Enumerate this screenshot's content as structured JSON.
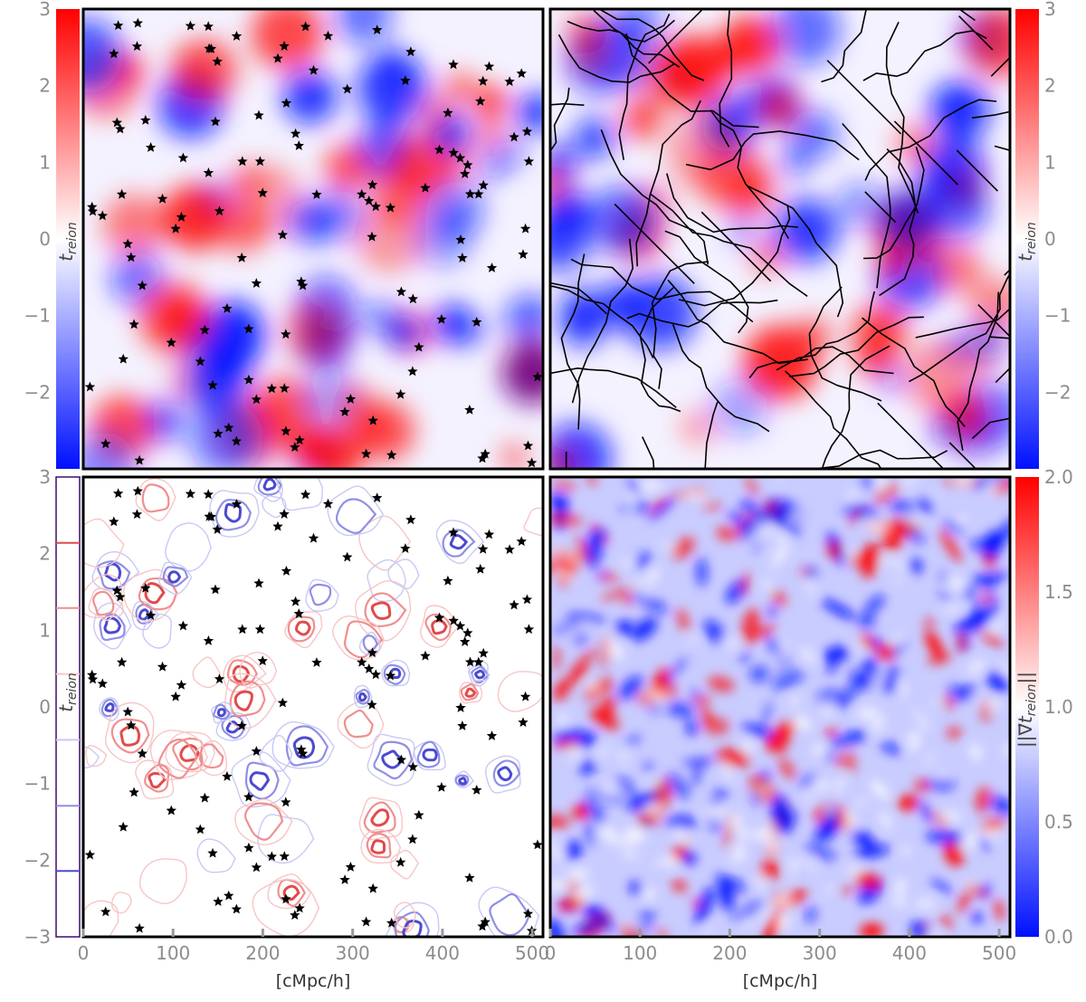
{
  "colors": {
    "cmap_low": "#0010ff",
    "cmap_mid": "#ffffff",
    "cmap_high": "#ff0000",
    "tick_text": "#8c8c8c",
    "frame": "#000000",
    "markers": "#000000"
  },
  "chart_data": [
    {
      "id": "top-left",
      "type": "heatmap",
      "title": "",
      "xlim": [
        0,
        512
      ],
      "ylim": [
        0,
        512
      ],
      "colorbar": {
        "label": "t_reion",
        "side": "left",
        "range": [
          -3,
          3
        ],
        "ticks": [
          3,
          2,
          1,
          0,
          -1,
          -2
        ],
        "tick_labels": [
          "3",
          "2",
          "1",
          "0",
          "−1",
          "−2"
        ]
      },
      "overlay": "star-markers"
    },
    {
      "id": "top-right",
      "type": "heatmap",
      "title": "",
      "xlim": [
        0,
        512
      ],
      "ylim": [
        0,
        512
      ],
      "colorbar": {
        "label": "t_reion",
        "side": "right",
        "range": [
          -3,
          3
        ],
        "ticks": [
          3,
          2,
          1,
          0,
          -1,
          -2
        ],
        "tick_labels": [
          "3",
          "2",
          "1",
          "0",
          "−1",
          "−2"
        ]
      },
      "overlay": "black-boundary-lines"
    },
    {
      "id": "bottom-left",
      "type": "contour",
      "title": "",
      "xlabel": "[cMpc/h]",
      "xlim": [
        0,
        512
      ],
      "ylim": [
        0,
        512
      ],
      "x_ticks": [
        0,
        100,
        200,
        300,
        400,
        500
      ],
      "x_tick_labels": [
        "0",
        "100",
        "200",
        "300",
        "400",
        "500"
      ],
      "colorbar": {
        "label": "t_reion",
        "side": "left",
        "range": [
          -3,
          3
        ],
        "ticks": [
          3,
          2,
          1,
          0,
          -1,
          -2,
          -3
        ],
        "tick_labels": [
          "3",
          "2",
          "1",
          "0",
          "−1",
          "−2",
          "−3"
        ],
        "contour_levels": [
          2.14,
          1.29,
          0.43,
          -0.43,
          -1.29,
          -2.14
        ]
      },
      "overlay": "star-markers"
    },
    {
      "id": "bottom-right",
      "type": "heatmap",
      "title": "",
      "xlabel": "[cMpc/h]",
      "xlim": [
        0,
        512
      ],
      "ylim": [
        0,
        512
      ],
      "x_ticks": [
        0,
        100,
        200,
        300,
        400,
        500
      ],
      "x_tick_labels": [
        "0",
        "100",
        "200",
        "300",
        "400",
        "500"
      ],
      "colorbar": {
        "label": "||∇⃗t_reion||",
        "side": "right",
        "range": [
          0,
          2
        ],
        "ticks": [
          2.0,
          1.5,
          1.0,
          0.5,
          0.0
        ],
        "tick_labels": [
          "2.0",
          "1.5",
          "1.0",
          "0.5",
          "0.0"
        ]
      }
    }
  ],
  "axis_labels": {
    "cbar_tl_main": "t",
    "cbar_tl_sub": "reion",
    "cbar_tr_main": "t",
    "cbar_tr_sub": "reion",
    "cbar_bl_main": "t",
    "cbar_bl_sub": "reion",
    "cbar_br_label": "||∇⃗t",
    "cbar_br_sub": "reion",
    "cbar_br_end": "||",
    "xlabel_left": "[cMpc/h]",
    "xlabel_right": "[cMpc/h]"
  }
}
